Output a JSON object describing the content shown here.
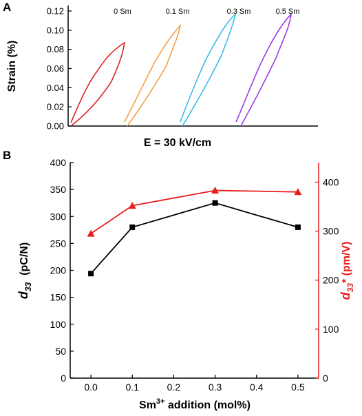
{
  "panels": {
    "a": {
      "letter": "A"
    },
    "b": {
      "letter": "B"
    }
  },
  "colors": {
    "axis": "#000000",
    "series_d33": "#000000",
    "series_d33_star": "#e81c1c",
    "loop_0": "#e02020",
    "loop_0_1": "#f2a048",
    "loop_0_3": "#38bde8",
    "loop_0_5": "#9b3ce8"
  },
  "chart_data": [
    {
      "type": "line",
      "subtype": "strain-electric-field loops",
      "panel": "A",
      "ylabel": "Strain (%)",
      "xlabel": "E = 30 kV/cm",
      "ylim": [
        0,
        0.12
      ],
      "y_ticks": [
        "0.00",
        "0.02",
        "0.04",
        "0.06",
        "0.08",
        "0.10",
        "0.12"
      ],
      "x_ticks": [],
      "series": [
        {
          "name": "0 Sm",
          "max_strain": 0.087
        },
        {
          "name": "0.1 Sm",
          "max_strain": 0.105
        },
        {
          "name": "0.3 Sm",
          "max_strain": 0.115
        },
        {
          "name": "0.5 Sm",
          "max_strain": 0.115
        }
      ]
    },
    {
      "type": "line",
      "panel": "B",
      "x": [
        0.0,
        0.1,
        0.3,
        0.5
      ],
      "x_ticks": [
        "0.0",
        "0.1",
        "0.2",
        "0.3",
        "0.4",
        "0.5"
      ],
      "xlabel_main": "Sm",
      "xlabel_sup": "3+",
      "xlabel_rest": " addition (mol%)",
      "xlim": [
        -0.05,
        0.55
      ],
      "ylabel_left_sym": "d",
      "ylabel_left_sub": "33",
      "ylabel_left_unit": "(pC/N)",
      "ylim_left": [
        0,
        400
      ],
      "y_ticks_left": [
        "0",
        "50",
        "100",
        "150",
        "200",
        "250",
        "300",
        "350",
        "400"
      ],
      "ylabel_right_sym": "d",
      "ylabel_right_sub": "33",
      "ylabel_right_rest": "* (pm/V)",
      "ylim_right": [
        0,
        440
      ],
      "y_ticks_right": [
        "0",
        "100",
        "200",
        "300",
        "400"
      ],
      "series": [
        {
          "axis": "left",
          "marker": "square",
          "values": [
            194,
            280,
            325,
            280
          ]
        },
        {
          "axis": "right",
          "marker": "triangle",
          "values": [
            295,
            352,
            383,
            380
          ]
        }
      ]
    }
  ]
}
